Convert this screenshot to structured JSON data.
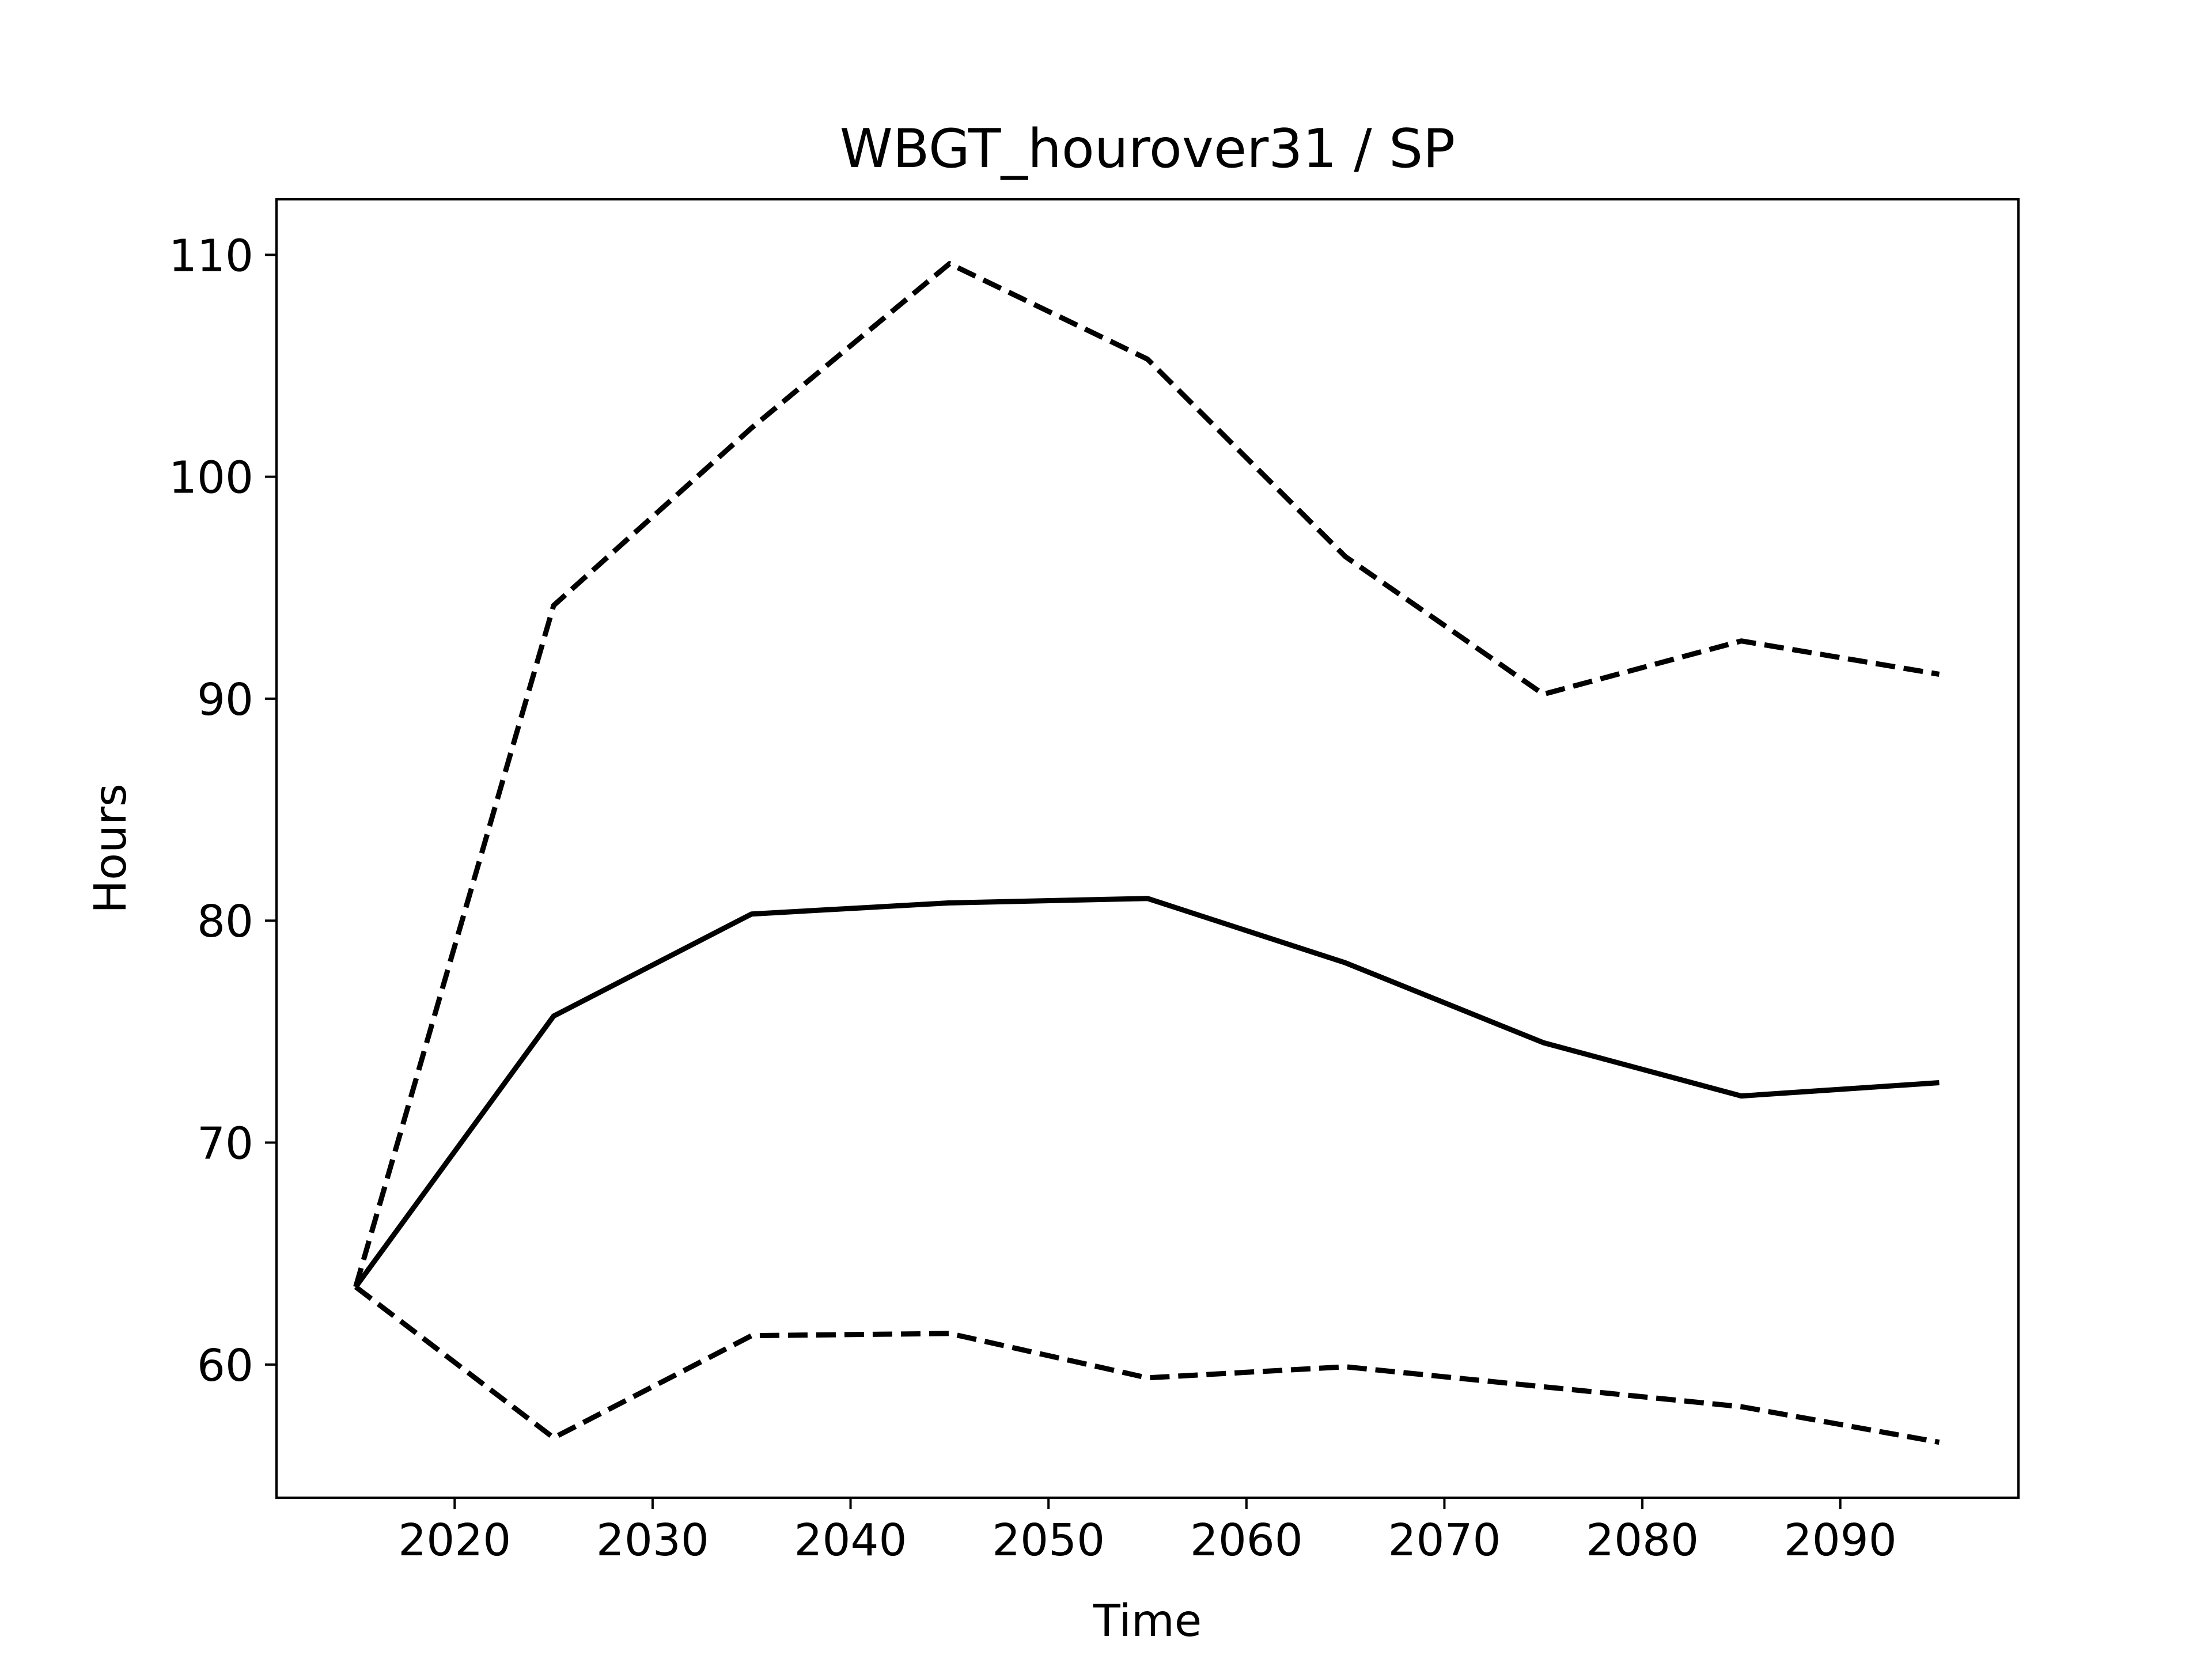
{
  "chart_data": {
    "type": "line",
    "title": "WBGT_hourover31 / SP",
    "xlabel": "Time",
    "ylabel": "Hours",
    "xlim": [
      2011,
      2099
    ],
    "ylim": [
      54,
      112.5
    ],
    "xticks": [
      2020,
      2030,
      2040,
      2050,
      2060,
      2070,
      2080,
      2090
    ],
    "yticks": [
      60,
      70,
      80,
      90,
      100,
      110
    ],
    "grid": false,
    "legend": "none",
    "line_color": "#000000",
    "x": [
      2015,
      2025,
      2035,
      2045,
      2055,
      2065,
      2075,
      2085,
      2095
    ],
    "series": [
      {
        "style": "solid",
        "values": [
          63.5,
          75.7,
          80.3,
          80.8,
          81.0,
          78.1,
          74.5,
          72.1,
          72.7
        ]
      },
      {
        "style": "dashed",
        "values": [
          63.5,
          94.2,
          102.2,
          109.6,
          105.3,
          96.4,
          90.2,
          92.6,
          91.1
        ]
      },
      {
        "style": "dashed",
        "values": [
          63.5,
          56.7,
          61.3,
          61.4,
          59.4,
          59.9,
          59.0,
          58.1,
          56.5
        ]
      }
    ]
  }
}
